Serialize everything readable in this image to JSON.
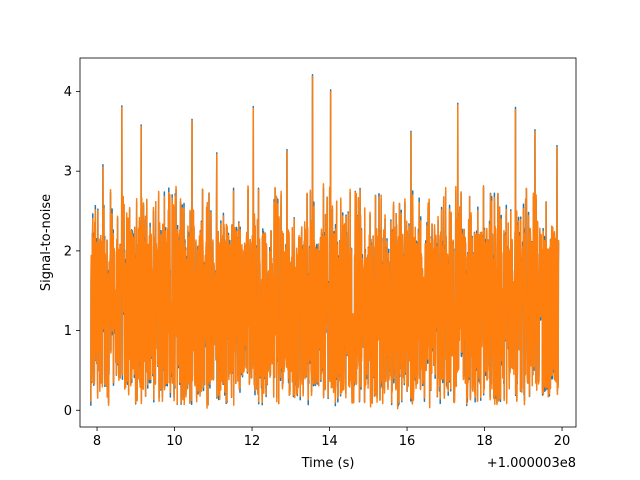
{
  "chart_data": {
    "type": "line",
    "title": "",
    "xlabel": "Time (s)",
    "ylabel": "Signal-to-noise",
    "x_offset_label": "+1.000003e8",
    "xlim": [
      7.56,
      20.36
    ],
    "ylim": [
      -0.21,
      4.42
    ],
    "x_ticks": [
      8,
      10,
      12,
      14,
      16,
      18,
      20
    ],
    "y_ticks": [
      0,
      1,
      2,
      3,
      4
    ],
    "grid": false,
    "legend": "none",
    "x_range_data": [
      7.84,
      19.91
    ],
    "series": [
      {
        "color": "#1f77b4",
        "peaks": [
          {
            "x": 8.15,
            "y": 3.08
          },
          {
            "x": 8.64,
            "y": 3.82
          },
          {
            "x": 9.14,
            "y": 3.58
          },
          {
            "x": 10.45,
            "y": 3.65
          },
          {
            "x": 11.09,
            "y": 3.23
          },
          {
            "x": 12.03,
            "y": 3.81
          },
          {
            "x": 12.9,
            "y": 3.27
          },
          {
            "x": 13.56,
            "y": 4.21
          },
          {
            "x": 14.03,
            "y": 4.02
          },
          {
            "x": 16.1,
            "y": 3.5
          },
          {
            "x": 17.31,
            "y": 3.85
          },
          {
            "x": 18.8,
            "y": 3.8
          },
          {
            "x": 19.3,
            "y": 3.52
          },
          {
            "x": 19.87,
            "y": 3.32
          }
        ]
      },
      {
        "color": "#ff7f0e",
        "peaks": [
          {
            "x": 8.15,
            "y": 3.05
          },
          {
            "x": 8.64,
            "y": 3.8
          },
          {
            "x": 9.14,
            "y": 3.56
          },
          {
            "x": 10.45,
            "y": 3.63
          },
          {
            "x": 11.09,
            "y": 3.21
          },
          {
            "x": 12.03,
            "y": 3.79
          },
          {
            "x": 12.9,
            "y": 3.25
          },
          {
            "x": 13.56,
            "y": 4.19
          },
          {
            "x": 14.03,
            "y": 4.0
          },
          {
            "x": 16.1,
            "y": 3.48
          },
          {
            "x": 17.31,
            "y": 3.83
          },
          {
            "x": 18.8,
            "y": 3.77
          },
          {
            "x": 19.3,
            "y": 3.5
          },
          {
            "x": 19.87,
            "y": 3.3
          }
        ]
      }
    ]
  }
}
